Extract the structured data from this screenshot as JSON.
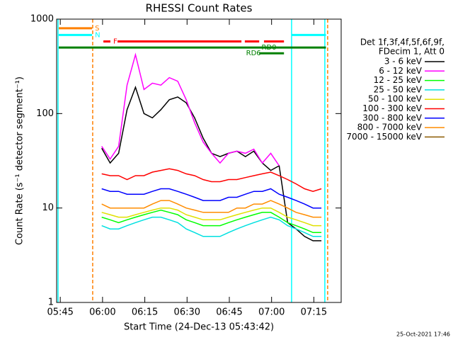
{
  "chart_data": {
    "type": "line",
    "title": "RHESSI Count Rates",
    "x_label": "Start Time (24-Dec-13 05:43:42)",
    "y_label": "Count Rate (s⁻¹ detector segment⁻¹)",
    "footer": "25-Oct-2021 17:46",
    "legend_title": [
      "Det 1f,3f,4f,5f,6f,9f,",
      "FDecim 1, Att 0"
    ],
    "log_y": true,
    "xlim": [
      0,
      101
    ],
    "ylim": [
      1,
      1000
    ],
    "xticks": [
      {
        "value": 1.3,
        "label": "05:45"
      },
      {
        "value": 16.3,
        "label": "06:00"
      },
      {
        "value": 31.3,
        "label": "06:15"
      },
      {
        "value": 46.3,
        "label": "06:30"
      },
      {
        "value": 61.3,
        "label": "06:45"
      },
      {
        "value": 76.3,
        "label": "07:00"
      },
      {
        "value": 91.3,
        "label": "07:15"
      }
    ],
    "yticks": [
      1,
      10,
      100,
      1000
    ],
    "x": [
      16,
      19,
      22,
      25,
      28,
      31,
      34,
      37,
      40,
      43,
      46,
      49,
      52,
      55,
      58,
      61,
      64,
      67,
      70,
      73,
      76,
      79,
      82,
      85,
      88,
      91,
      94
    ],
    "series": [
      {
        "name": "3 - 6 keV",
        "color": "#000000",
        "values": [
          43,
          30,
          38,
          110,
          190,
          100,
          90,
          110,
          140,
          150,
          130,
          90,
          55,
          38,
          35,
          38,
          40,
          35,
          40,
          30,
          25,
          28,
          7,
          6,
          5,
          4.5,
          4.5
        ]
      },
      {
        "name": "6 - 12 keV",
        "color": "#ff00ff",
        "values": [
          45,
          33,
          45,
          200,
          420,
          180,
          210,
          200,
          240,
          220,
          140,
          80,
          50,
          38,
          30,
          38,
          40,
          38,
          42,
          30,
          38,
          28,
          null,
          null,
          null,
          null,
          null
        ]
      },
      {
        "name": "12 - 25 keV",
        "color": "#00ff00",
        "values": [
          8,
          7.5,
          7,
          7.5,
          8,
          8.5,
          9,
          9.5,
          9,
          8.5,
          7.5,
          7,
          6.5,
          6.5,
          6.5,
          7,
          7.5,
          8,
          8.5,
          9,
          9,
          8,
          7,
          6.5,
          6,
          5.5,
          5.5
        ]
      },
      {
        "name": "25 - 50 keV",
        "color": "#00e0e0",
        "values": [
          6.5,
          6,
          6,
          6.5,
          7,
          7.5,
          8,
          8,
          7.5,
          7,
          6,
          5.5,
          5,
          5,
          5,
          5.5,
          6,
          6.5,
          7,
          7.5,
          8,
          7.5,
          6.5,
          6,
          5.5,
          5,
          5
        ]
      },
      {
        "name": "50 - 100 keV",
        "color": "#e0e000",
        "values": [
          9,
          8.5,
          8,
          8,
          8.5,
          9,
          9.5,
          10,
          10,
          9.5,
          8.5,
          8,
          7.5,
          7.5,
          7.5,
          8,
          8.5,
          9,
          9.5,
          10,
          10,
          9,
          8,
          7.5,
          7,
          6.5,
          6.5
        ]
      },
      {
        "name": "100 - 300 keV",
        "color": "#ff0000",
        "values": [
          23,
          22,
          22,
          20,
          22,
          22,
          24,
          25,
          26,
          25,
          23,
          22,
          20,
          19,
          19,
          20,
          20,
          21,
          22,
          23,
          24,
          22,
          20,
          18,
          16,
          15,
          16
        ]
      },
      {
        "name": "300 - 800 keV",
        "color": "#0000ff",
        "values": [
          16,
          15,
          15,
          14,
          14,
          14,
          15,
          16,
          16,
          15,
          14,
          13,
          12,
          12,
          12,
          13,
          13,
          14,
          15,
          15,
          16,
          14,
          13,
          12,
          11,
          10,
          10
        ]
      },
      {
        "name": "800 - 7000 keV",
        "color": "#ff8c00",
        "values": [
          11,
          10,
          10,
          10,
          10,
          10,
          11,
          12,
          12,
          11,
          10,
          9.5,
          9,
          9,
          9,
          9,
          10,
          10,
          11,
          11,
          12,
          11,
          10,
          9,
          8.5,
          8,
          8
        ]
      },
      {
        "name": "7000 - 15000 keV",
        "color": "#8b5a00",
        "values": [
          null,
          null,
          null,
          null,
          null,
          null,
          null,
          null,
          null,
          null,
          null,
          null,
          null,
          null,
          null,
          null,
          null,
          null,
          null,
          null,
          null,
          null,
          null,
          null,
          null,
          null,
          null
        ]
      }
    ],
    "flags": [
      {
        "label": "S",
        "color": "#ff8000",
        "level": 800,
        "segments": [
          [
            0.75,
            12.6
          ]
        ]
      },
      {
        "label": "N",
        "color": "#00ffff",
        "level": 680,
        "segments": [
          [
            0.75,
            12.6
          ],
          [
            83.3,
            95.6
          ]
        ]
      },
      {
        "label": "F",
        "color": "#ff0000",
        "level": 580,
        "segments": [
          [
            16.6,
            19.1
          ],
          [
            21.6,
            65.6
          ],
          [
            66.8,
            71.9
          ],
          [
            73.6,
            80.7
          ]
        ]
      },
      {
        "label": "RD0",
        "color": "#008000",
        "level": 500,
        "segments": [
          [
            0.75,
            95.6
          ]
        ]
      },
      {
        "label": "RD6",
        "color": "#008000",
        "level": 435,
        "segments": [
          [
            71.9,
            80.7
          ]
        ]
      }
    ],
    "vlines": [
      {
        "x": 0.5,
        "color": "#00ffff",
        "dashed": false
      },
      {
        "x": 12.8,
        "color": "#ff8000",
        "dashed": true
      },
      {
        "x": 83.4,
        "color": "#00ffff",
        "dashed": false
      },
      {
        "x": 95.2,
        "color": "#00ffff",
        "dashed": false
      },
      {
        "x": 96.2,
        "color": "#ff8000",
        "dashed": true
      }
    ]
  }
}
